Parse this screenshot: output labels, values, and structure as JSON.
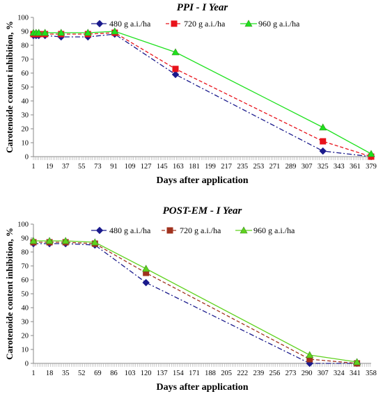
{
  "chart_data": [
    {
      "type": "line",
      "title": "PPI - I Year",
      "xlabel": "Days after application",
      "ylabel": "Carotenoide content inhibition, %",
      "xlim": [
        1,
        379
      ],
      "ylim": [
        0,
        100
      ],
      "yticks": [
        0,
        10,
        20,
        30,
        40,
        50,
        60,
        70,
        80,
        90,
        100
      ],
      "xticks": [
        1,
        19,
        37,
        55,
        73,
        91,
        109,
        127,
        145,
        163,
        181,
        199,
        217,
        235,
        253,
        271,
        289,
        307,
        325,
        343,
        361,
        379
      ],
      "legend_position": "top",
      "series": [
        {
          "name": "480 g a.i./ha",
          "color": "#1a1a8c",
          "marker": "diamond",
          "dash": "dashdot",
          "x": [
            1,
            4,
            7,
            14,
            32,
            62,
            92,
            160,
            325,
            379
          ],
          "y": [
            87,
            87,
            87,
            87,
            86,
            86,
            88,
            59,
            4,
            0
          ]
        },
        {
          "name": "720 g a.i./ha",
          "color": "#e8131b",
          "marker": "square",
          "dash": "dash",
          "x": [
            1,
            4,
            7,
            14,
            32,
            62,
            92,
            160,
            325,
            379
          ],
          "y": [
            88,
            88,
            88,
            88,
            88,
            88,
            89,
            63,
            11,
            0
          ]
        },
        {
          "name": "960 g a.i./ha",
          "color": "#1ee11e",
          "marker": "triangle",
          "dash": "solid",
          "x": [
            1,
            4,
            7,
            14,
            32,
            62,
            92,
            160,
            325,
            379
          ],
          "y": [
            89,
            89,
            89,
            89,
            89,
            89,
            90,
            75,
            21,
            2
          ]
        }
      ]
    },
    {
      "type": "line",
      "title": "POST-EM - I Year",
      "xlabel": "Days after application",
      "ylabel": "Carotenoide content inhibition, %",
      "xlim": [
        1,
        358
      ],
      "ylim": [
        0,
        100
      ],
      "yticks": [
        0,
        10,
        20,
        30,
        40,
        50,
        60,
        70,
        80,
        90,
        100
      ],
      "xticks": [
        1,
        18,
        35,
        52,
        69,
        86,
        103,
        120,
        137,
        154,
        171,
        188,
        205,
        222,
        239,
        256,
        273,
        290,
        307,
        324,
        341,
        358
      ],
      "legend_position": "top",
      "series": [
        {
          "name": "480 g a.i./ha",
          "color": "#1a1a8c",
          "marker": "diamond",
          "dash": "dashdot",
          "x": [
            1,
            18,
            35,
            66,
            120,
            293,
            343
          ],
          "y": [
            86,
            86,
            86,
            85,
            58,
            0,
            0
          ]
        },
        {
          "name": "720 g a.i./ha",
          "color": "#a0321e",
          "marker": "square",
          "dash": "dash",
          "x": [
            1,
            18,
            35,
            66,
            120,
            293,
            343
          ],
          "y": [
            87,
            87,
            87,
            86,
            65,
            3,
            0
          ]
        },
        {
          "name": "960 g a.i./ha",
          "color": "#5fd21e",
          "marker": "triangle",
          "dash": "solid",
          "x": [
            1,
            18,
            35,
            66,
            120,
            293,
            343
          ],
          "y": [
            88,
            88,
            88,
            87,
            68,
            6,
            1
          ]
        }
      ]
    }
  ]
}
